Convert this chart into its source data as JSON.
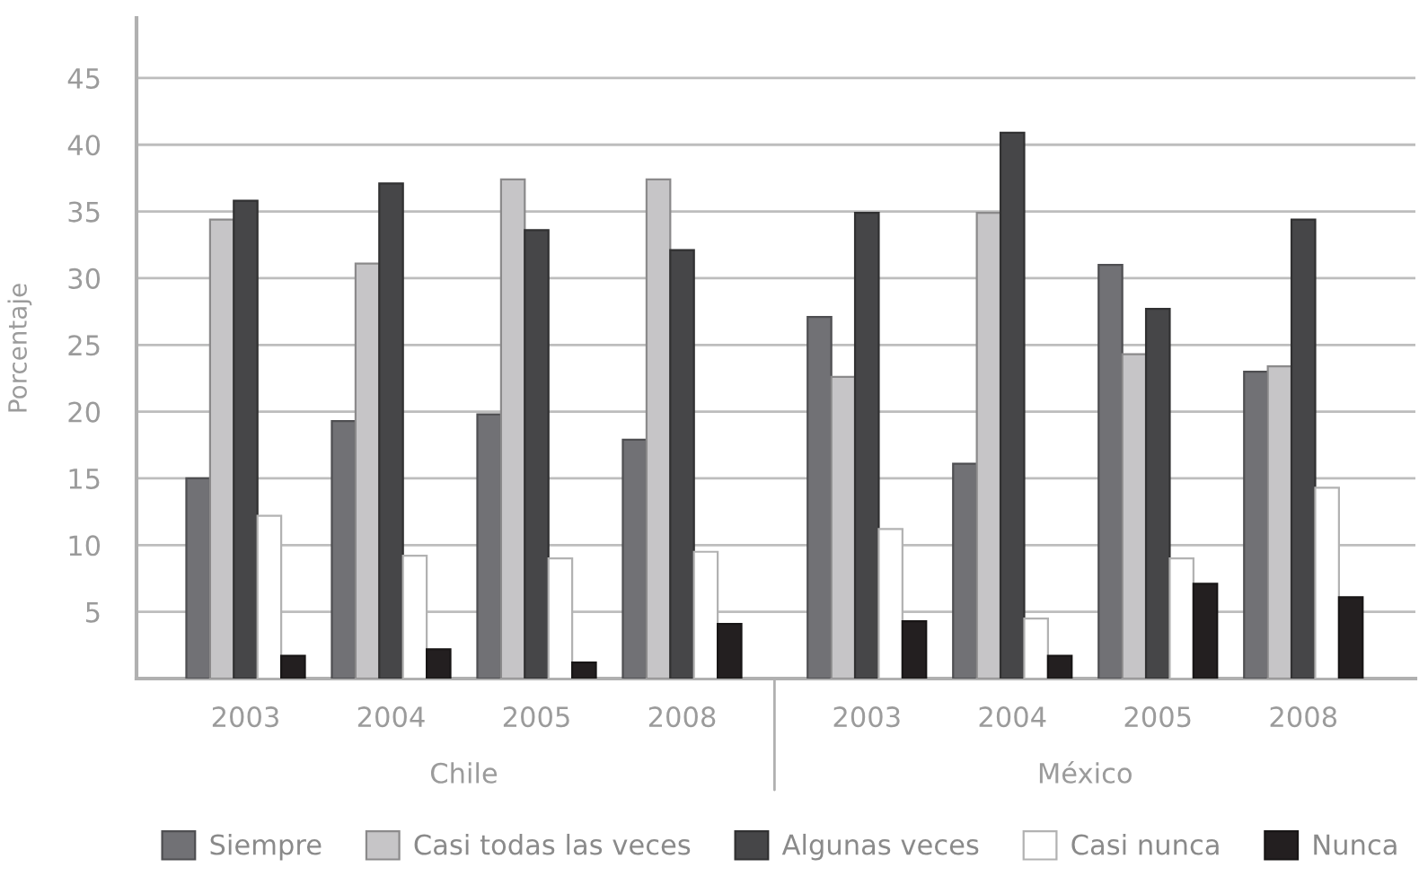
{
  "chart_data": {
    "type": "bar",
    "ylabel": "Porcentaje",
    "categories": [
      "2003",
      "2004",
      "2005",
      "2008",
      "2003",
      "2004",
      "2005",
      "2008"
    ],
    "annotations": [
      "Chile",
      "México"
    ],
    "series": [
      {
        "name": "Siempre",
        "color": "#717175",
        "values": [
          15.0,
          19.3,
          19.8,
          17.9,
          27.1,
          16.1,
          31.0,
          23.0
        ]
      },
      {
        "name": "Casi todas las veces",
        "color": "#c6c5c7",
        "values": [
          34.4,
          31.1,
          37.4,
          37.4,
          22.6,
          34.9,
          24.3,
          23.4
        ]
      },
      {
        "name": "Algunas veces",
        "color": "#464648",
        "values": [
          35.8,
          37.1,
          33.6,
          32.1,
          34.9,
          40.9,
          27.7,
          34.4
        ]
      },
      {
        "name": "Casi nunca",
        "color": "#ffffff",
        "values": [
          12.2,
          9.2,
          9.0,
          9.5,
          11.2,
          4.5,
          9.0,
          14.3
        ]
      },
      {
        "name": "Nunca",
        "color": "#231f20",
        "values": [
          1.7,
          2.2,
          1.2,
          4.1,
          4.3,
          1.7,
          7.1,
          6.1
        ]
      }
    ],
    "ylim": [
      0,
      49.5
    ],
    "yticks": [
      5,
      10,
      15,
      20,
      25,
      30,
      35,
      40,
      45
    ],
    "grid": "y",
    "legend": "bottom"
  }
}
